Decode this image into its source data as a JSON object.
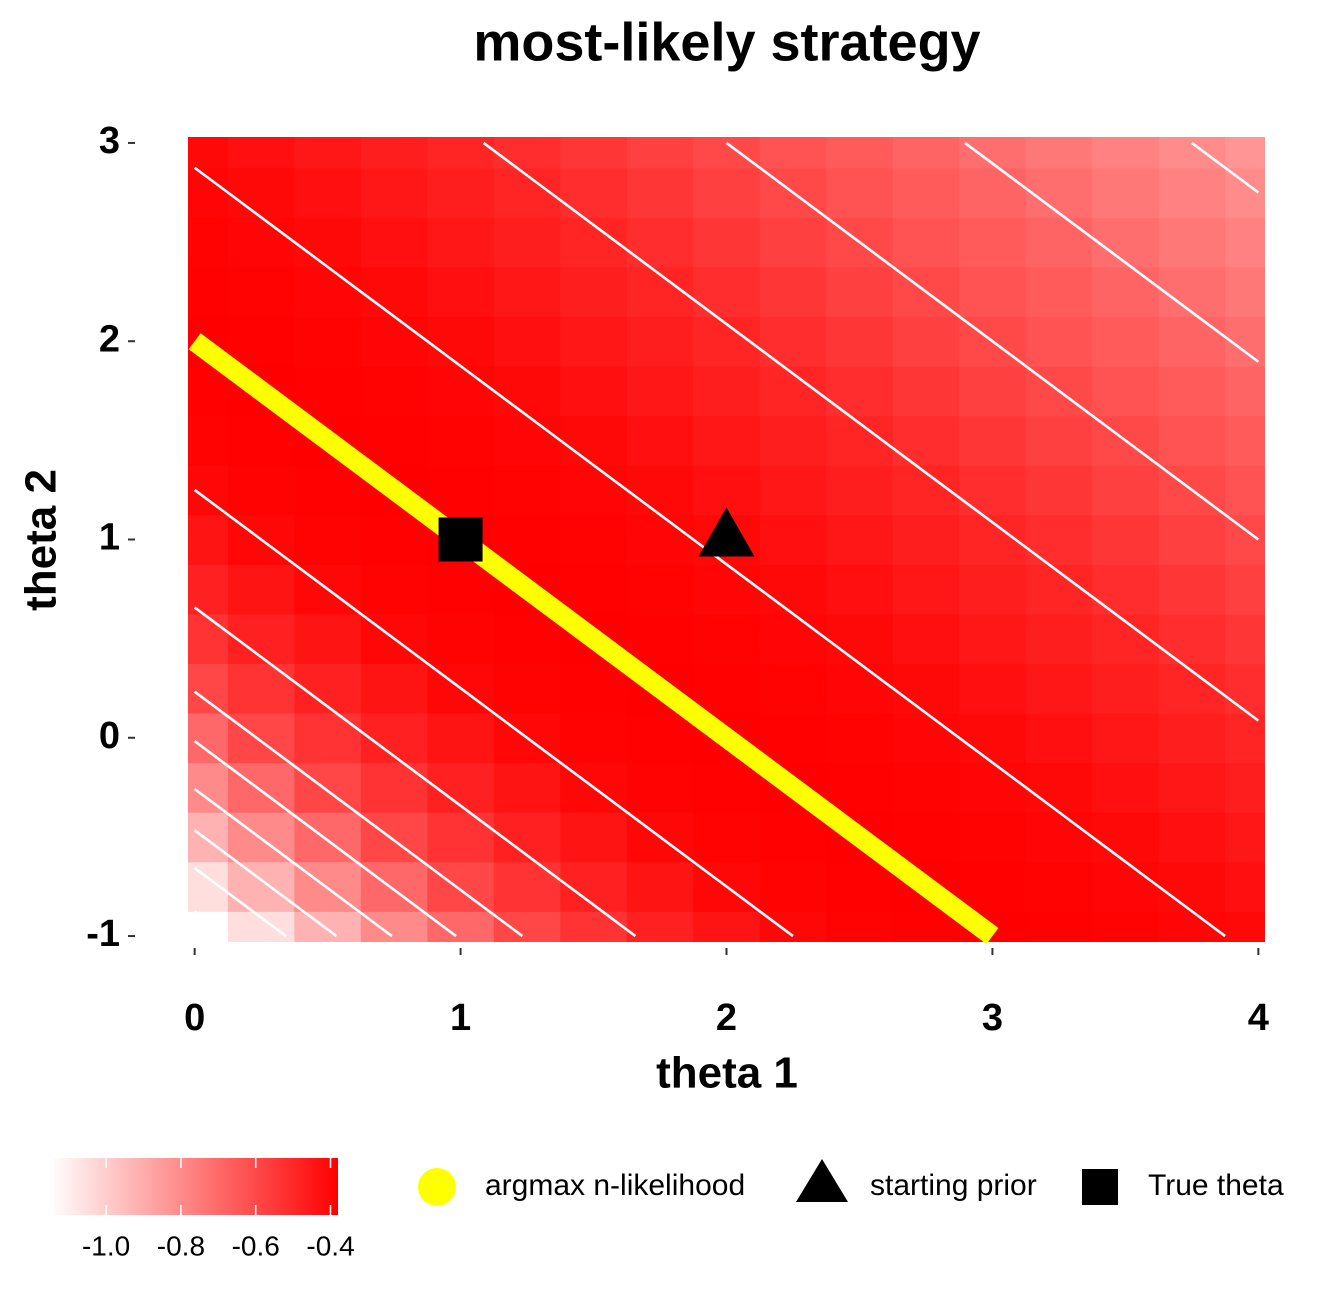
{
  "chart_data": {
    "type": "heatmap",
    "title": "most-likely strategy",
    "x_label": "theta 1",
    "y_label": "theta 2",
    "xlim": [
      -0.025,
      4.025
    ],
    "ylim": [
      -1.03,
      3.03
    ],
    "xticks": [
      0,
      1,
      2,
      3,
      4
    ],
    "yticks": [
      -1,
      0,
      1,
      2,
      3
    ],
    "x": [
      0,
      0.25,
      0.5,
      0.75,
      1,
      1.25,
      1.5,
      1.75,
      2,
      2.25,
      2.5,
      2.75,
      3,
      3.25,
      3.5,
      3.75,
      4
    ],
    "y": [
      -1,
      -0.75,
      -0.5,
      -0.25,
      0,
      0.25,
      0.5,
      0.75,
      1,
      1.25,
      1.5,
      1.75,
      2,
      2.25,
      2.5,
      2.75,
      3
    ],
    "z": [
      [
        -1.15,
        -1.05,
        -0.916,
        -0.796,
        -0.693,
        -0.593,
        -0.534,
        -0.48,
        -0.44,
        -0.4,
        -0.39,
        -0.383,
        -0.38,
        -0.383,
        -0.39,
        -0.396,
        -0.404
      ],
      [
        -1.05,
        -0.916,
        -0.796,
        -0.693,
        -0.593,
        -0.534,
        -0.48,
        -0.44,
        -0.4,
        -0.39,
        -0.383,
        -0.38,
        -0.383,
        -0.39,
        -0.396,
        -0.404,
        -0.426
      ],
      [
        -0.916,
        -0.796,
        -0.693,
        -0.593,
        -0.534,
        -0.48,
        -0.44,
        -0.4,
        -0.39,
        -0.383,
        -0.38,
        -0.383,
        -0.39,
        -0.396,
        -0.404,
        -0.426,
        -0.448
      ],
      [
        -0.796,
        -0.693,
        -0.593,
        -0.534,
        -0.48,
        -0.44,
        -0.4,
        -0.39,
        -0.383,
        -0.38,
        -0.383,
        -0.39,
        -0.396,
        -0.404,
        -0.426,
        -0.448,
        -0.47
      ],
      [
        -0.693,
        -0.593,
        -0.534,
        -0.48,
        -0.44,
        -0.4,
        -0.39,
        -0.383,
        -0.38,
        -0.383,
        -0.39,
        -0.396,
        -0.404,
        -0.426,
        -0.448,
        -0.47,
        -0.491
      ],
      [
        -0.593,
        -0.534,
        -0.48,
        -0.44,
        -0.4,
        -0.39,
        -0.383,
        -0.38,
        -0.383,
        -0.39,
        -0.396,
        -0.404,
        -0.426,
        -0.448,
        -0.47,
        -0.491,
        -0.517
      ],
      [
        -0.534,
        -0.48,
        -0.44,
        -0.4,
        -0.39,
        -0.383,
        -0.38,
        -0.383,
        -0.39,
        -0.396,
        -0.404,
        -0.426,
        -0.448,
        -0.47,
        -0.491,
        -0.517,
        -0.544
      ],
      [
        -0.48,
        -0.44,
        -0.4,
        -0.39,
        -0.383,
        -0.38,
        -0.383,
        -0.39,
        -0.396,
        -0.404,
        -0.426,
        -0.448,
        -0.47,
        -0.491,
        -0.517,
        -0.544,
        -0.572
      ],
      [
        -0.44,
        -0.4,
        -0.39,
        -0.383,
        -0.38,
        -0.383,
        -0.39,
        -0.396,
        -0.404,
        -0.426,
        -0.448,
        -0.47,
        -0.491,
        -0.517,
        -0.544,
        -0.572,
        -0.6
      ],
      [
        -0.4,
        -0.39,
        -0.383,
        -0.38,
        -0.383,
        -0.39,
        -0.396,
        -0.404,
        -0.426,
        -0.448,
        -0.47,
        -0.491,
        -0.517,
        -0.544,
        -0.572,
        -0.6,
        -0.628
      ],
      [
        -0.39,
        -0.383,
        -0.38,
        -0.383,
        -0.39,
        -0.396,
        -0.404,
        -0.426,
        -0.448,
        -0.47,
        -0.491,
        -0.517,
        -0.544,
        -0.572,
        -0.6,
        -0.628,
        -0.656
      ],
      [
        -0.383,
        -0.38,
        -0.383,
        -0.39,
        -0.396,
        -0.404,
        -0.426,
        -0.448,
        -0.47,
        -0.491,
        -0.517,
        -0.544,
        -0.572,
        -0.6,
        -0.628,
        -0.656,
        -0.683
      ],
      [
        -0.38,
        -0.383,
        -0.39,
        -0.396,
        -0.404,
        -0.426,
        -0.448,
        -0.47,
        -0.491,
        -0.517,
        -0.544,
        -0.572,
        -0.6,
        -0.628,
        -0.656,
        -0.683,
        -0.712
      ],
      [
        -0.383,
        -0.39,
        -0.396,
        -0.404,
        -0.426,
        -0.448,
        -0.47,
        -0.491,
        -0.517,
        -0.544,
        -0.572,
        -0.6,
        -0.628,
        -0.656,
        -0.683,
        -0.712,
        -0.741
      ],
      [
        -0.39,
        -0.396,
        -0.404,
        -0.426,
        -0.448,
        -0.47,
        -0.491,
        -0.517,
        -0.544,
        -0.572,
        -0.6,
        -0.628,
        -0.656,
        -0.683,
        -0.712,
        -0.741,
        -0.771
      ],
      [
        -0.396,
        -0.404,
        -0.426,
        -0.448,
        -0.47,
        -0.491,
        -0.517,
        -0.544,
        -0.572,
        -0.6,
        -0.628,
        -0.656,
        -0.683,
        -0.712,
        -0.741,
        -0.771,
        -0.8
      ],
      [
        -0.404,
        -0.426,
        -0.448,
        -0.47,
        -0.491,
        -0.517,
        -0.544,
        -0.572,
        -0.6,
        -0.628,
        -0.656,
        -0.683,
        -0.712,
        -0.741,
        -0.771,
        -0.8,
        -0.83
      ]
    ],
    "low_color": "#ffffff",
    "high_color": "#ff0000",
    "colorbar_lim": [
      -1.15,
      -0.38
    ],
    "colorbar_ticks": [
      {
        "value": -1,
        "label": "-1.0"
      },
      -0.8,
      -0.6,
      -0.4
    ],
    "contour_levels": [
      -1.1,
      -1,
      -0.9,
      -0.8,
      -0.7,
      -0.6,
      -0.5,
      -0.4
    ],
    "contour_color": "#ffffff",
    "series": [
      {
        "name": "argmax n-likelihood",
        "color": "#ffff00",
        "marker": "line",
        "x": [
          0,
          3
        ],
        "y": [
          2,
          -1
        ]
      },
      {
        "name": "starting prior",
        "color": "#000000",
        "marker": "triangle",
        "x": [
          2
        ],
        "y": [
          1
        ]
      },
      {
        "name": "True theta",
        "color": "#000000",
        "marker": "square",
        "x": [
          1
        ],
        "y": [
          1
        ]
      }
    ]
  }
}
